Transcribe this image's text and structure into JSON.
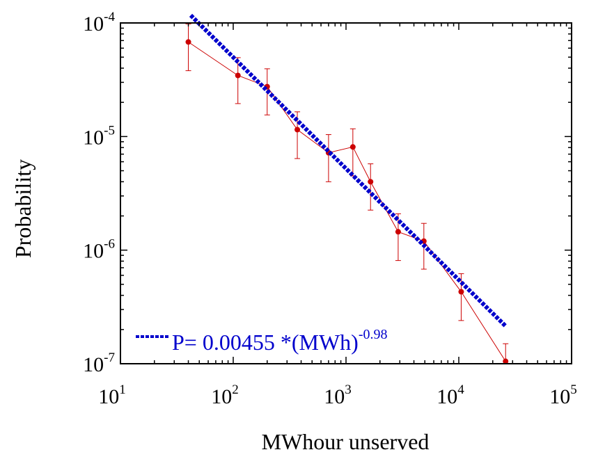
{
  "chart_data": {
    "type": "scatter",
    "title": "",
    "xlabel": "MWhour unserved",
    "ylabel": "Probability",
    "x_scale": "log",
    "y_scale": "log",
    "xlim": [
      10,
      100000
    ],
    "ylim": [
      1e-07,
      0.0001
    ],
    "x_ticks": [
      {
        "value": 10,
        "base": "10",
        "exp": "1"
      },
      {
        "value": 100,
        "base": "10",
        "exp": "2"
      },
      {
        "value": 1000,
        "base": "10",
        "exp": "3"
      },
      {
        "value": 10000,
        "base": "10",
        "exp": "4"
      },
      {
        "value": 100000,
        "base": "10",
        "exp": "5"
      }
    ],
    "y_ticks": [
      {
        "value": 1e-07,
        "base": "10",
        "exp": "-7"
      },
      {
        "value": 1e-06,
        "base": "10",
        "exp": "-6"
      },
      {
        "value": 1e-05,
        "base": "10",
        "exp": "-5"
      },
      {
        "value": 0.0001,
        "base": "10",
        "exp": "-4"
      }
    ],
    "grid": false,
    "series": [
      {
        "kind": "data-with-errorbars",
        "color": "#cc0000",
        "x": [
          40,
          110,
          200,
          370,
          700,
          1150,
          1650,
          2900,
          4900,
          10500,
          26000
        ],
        "y": [
          6.8e-05,
          3.45e-05,
          2.75e-05,
          1.15e-05,
          7.2e-06,
          8.1e-06,
          4e-06,
          1.45e-06,
          1.2e-06,
          4.3e-07,
          1.05e-07
        ],
        "y_low": [
          3.8e-05,
          1.95e-05,
          1.55e-05,
          6.4e-06,
          4e-06,
          4.5e-06,
          2.25e-06,
          8.1e-07,
          6.8e-07,
          2.4e-07,
          1e-07
        ],
        "y_high": [
          9.8e-05,
          4.95e-05,
          3.95e-05,
          1.65e-05,
          1.04e-05,
          1.17e-05,
          5.75e-06,
          2.09e-06,
          1.72e-06,
          6.2e-07,
          1.5e-07
        ]
      },
      {
        "kind": "power-law-fit",
        "color": "#0000cc",
        "coefficient": 0.00455,
        "exponent": -0.98,
        "x_range": [
          42,
          26000
        ]
      }
    ],
    "legend": {
      "placement": "bottom-left",
      "entries": [
        {
          "text": "P= 0.00455 *(MWh)",
          "sup": "-0.98",
          "color": "#0000cc"
        }
      ]
    }
  }
}
